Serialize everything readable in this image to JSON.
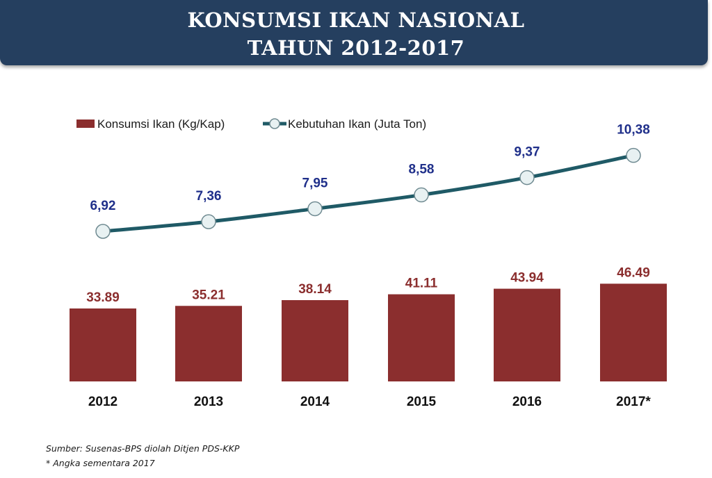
{
  "header": {
    "title_line_1": "KONSUMSI IKAN NASIONAL",
    "title_line_2": "TAHUN 2012-2017"
  },
  "legend": {
    "bar_label": "Konsumsi Ikan (Kg/Kap)",
    "line_label": "Kebutuhan Ikan (Juta Ton)"
  },
  "footnotes": {
    "source": "Sumber: Susenas-BPS diolah Ditjen PDS-KKP",
    "note": "* Angka sementara 2017"
  },
  "colors": {
    "header_bg": "#253f5f",
    "bar": "#8b2e2e",
    "bar_label": "#8b2e2e",
    "line": "#1f5a66",
    "marker_fill": "#e8f1f2",
    "line_label": "#1f2f8a",
    "axis_label": "#111111"
  },
  "chart_data": {
    "type": "bar",
    "categories": [
      "2012",
      "2013",
      "2014",
      "2015",
      "2016",
      "2017*"
    ],
    "series": [
      {
        "name": "Konsumsi Ikan (Kg/Kap)",
        "type": "bar",
        "values": [
          33.89,
          35.21,
          38.14,
          41.11,
          43.94,
          46.49
        ],
        "labels": [
          "33.89",
          "35.21",
          "38.14",
          "41.11",
          "43.94",
          "46.49"
        ]
      },
      {
        "name": "Kebutuhan Ikan (Juta Ton)",
        "type": "line",
        "values": [
          6.92,
          7.36,
          7.95,
          8.58,
          9.37,
          10.38
        ],
        "labels": [
          "6,92",
          "7,36",
          "7,95",
          "8,58",
          "9,37",
          "10,38"
        ]
      }
    ],
    "legend": "top-left",
    "grid": false
  }
}
